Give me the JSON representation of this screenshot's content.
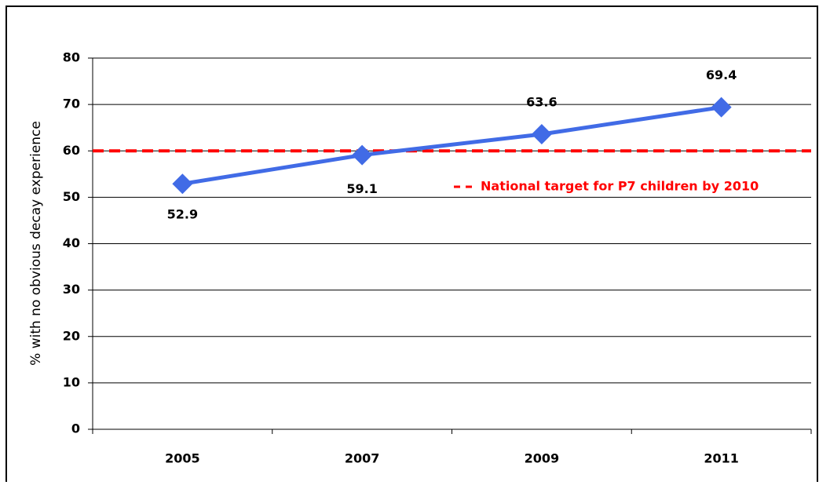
{
  "chart_data": {
    "type": "line",
    "y_label": "% with no obvious decay experience",
    "categories": [
      "2005",
      "2007",
      "2009",
      "2011"
    ],
    "series": [
      {
        "name": "% with no obvious decay experience",
        "color": "#416be6",
        "values": [
          52.9,
          59.1,
          63.6,
          69.4
        ]
      }
    ],
    "ylim": [
      0,
      80
    ],
    "yticks": [
      0,
      10,
      20,
      30,
      40,
      50,
      60,
      70,
      80
    ],
    "grid": true,
    "reference_line": {
      "value": 60,
      "label": "National target for P7 children by 2010",
      "color": "#ff0000"
    }
  }
}
